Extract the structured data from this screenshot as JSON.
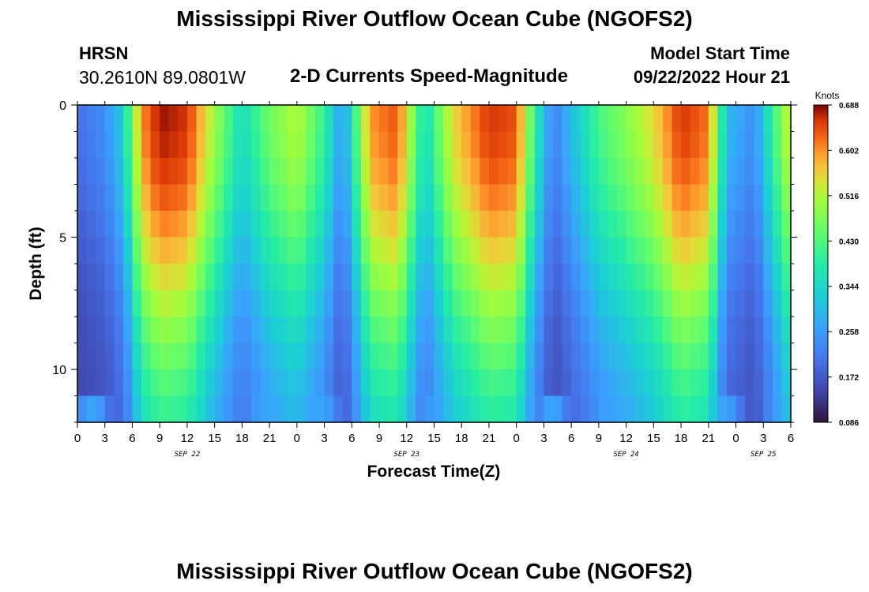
{
  "header": {
    "title": "Mississippi River Outflow Ocean Cube (NGOFS2)",
    "station_name": "HRSN",
    "station_coords": "30.2610N  89.0801W",
    "subtitle": "2-D Currents Speed-Magnitude",
    "model_start_label": "Model Start Time",
    "model_start_value": "09/22/2022 Hour 21"
  },
  "footer": {
    "title": "Mississippi River Outflow Ocean Cube (NGOFS2)"
  },
  "chart_data": {
    "type": "heatmap",
    "title": "2-D Currents Speed-Magnitude",
    "xlabel": "Forecast Time(Z)",
    "ylabel": "Depth (ft)",
    "x_hours_range": [
      0,
      78
    ],
    "ylim": [
      0,
      12
    ],
    "x_tick_labels": [
      "0",
      "3",
      "6",
      "9",
      "12",
      "15",
      "18",
      "21",
      "0",
      "3",
      "6",
      "9",
      "12",
      "15",
      "18",
      "21",
      "0",
      "3",
      "6",
      "9",
      "12",
      "15",
      "18",
      "21",
      "0",
      "3",
      "6"
    ],
    "y_tick_labels": [
      "0",
      "5",
      "10"
    ],
    "y_ticks": [
      0,
      5,
      10
    ],
    "date_labels": [
      {
        "text": "SEP 22",
        "hour": 12
      },
      {
        "text": "SEP 23",
        "hour": 36
      },
      {
        "text": "SEP 24",
        "hour": 60
      },
      {
        "text": "SEP 25",
        "hour": 75
      }
    ],
    "colorbar": {
      "label": "Knots",
      "min": 0.086,
      "max": 0.688,
      "tick_labels": [
        "0.086",
        "0.172",
        "0.258",
        "0.344",
        "0.430",
        "0.516",
        "0.602",
        "0.688"
      ]
    },
    "surface_speed_knots": [
      {
        "hour": 0,
        "value": 0.2
      },
      {
        "hour": 3,
        "value": 0.24
      },
      {
        "hour": 5,
        "value": 0.33
      },
      {
        "hour": 7,
        "value": 0.6
      },
      {
        "hour": 9,
        "value": 0.68
      },
      {
        "hour": 12,
        "value": 0.66
      },
      {
        "hour": 15,
        "value": 0.5
      },
      {
        "hour": 18,
        "value": 0.35
      },
      {
        "hour": 21,
        "value": 0.46
      },
      {
        "hour": 24,
        "value": 0.52
      },
      {
        "hour": 27,
        "value": 0.4
      },
      {
        "hour": 29,
        "value": 0.25
      },
      {
        "hour": 32,
        "value": 0.6
      },
      {
        "hour": 35,
        "value": 0.64
      },
      {
        "hour": 38,
        "value": 0.35
      },
      {
        "hour": 41,
        "value": 0.55
      },
      {
        "hour": 45,
        "value": 0.66
      },
      {
        "hour": 48,
        "value": 0.64
      },
      {
        "hour": 50,
        "value": 0.4
      },
      {
        "hour": 52,
        "value": 0.22
      },
      {
        "hour": 54,
        "value": 0.3
      },
      {
        "hour": 57,
        "value": 0.42
      },
      {
        "hour": 60,
        "value": 0.48
      },
      {
        "hour": 63,
        "value": 0.55
      },
      {
        "hour": 66,
        "value": 0.66
      },
      {
        "hour": 69,
        "value": 0.62
      },
      {
        "hour": 71,
        "value": 0.3
      },
      {
        "hour": 74,
        "value": 0.24
      },
      {
        "hour": 76,
        "value": 0.4
      },
      {
        "hour": 78,
        "value": 0.55
      }
    ]
  }
}
